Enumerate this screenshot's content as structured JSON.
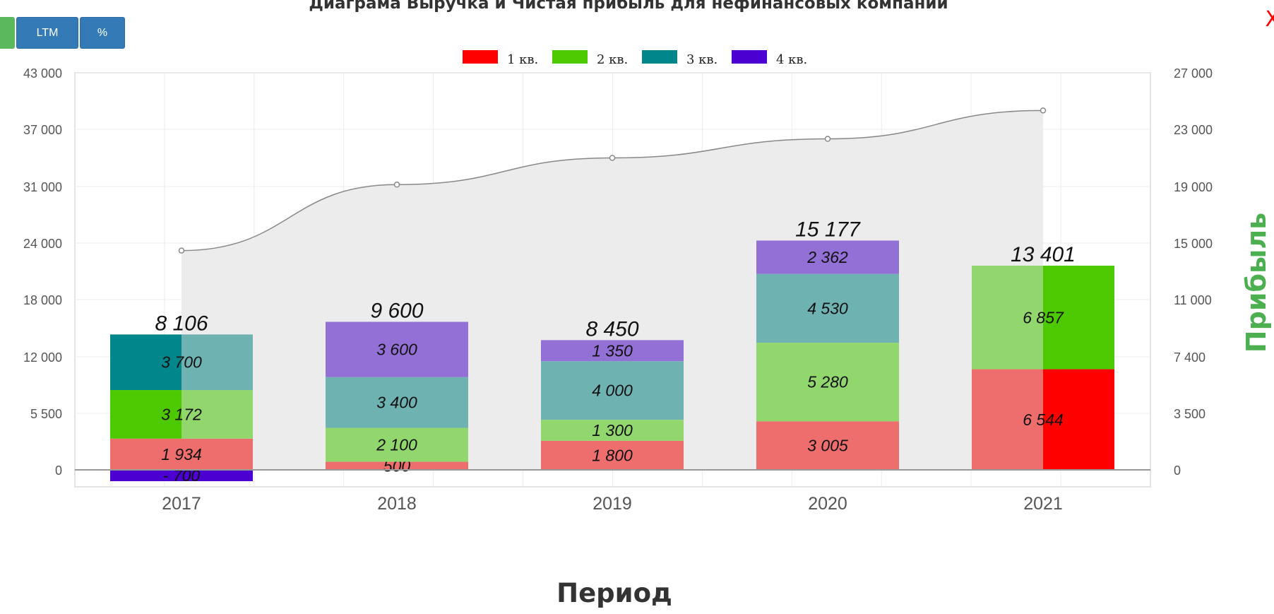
{
  "title": "Диаграма Выручка и Чистая прибыль для нефинансовых компаний",
  "buttons": {
    "ltm": "LTM",
    "percent": "%"
  },
  "close_label": "X",
  "chart_data": {
    "type": "bar",
    "stacked": true,
    "categories": [
      "2017",
      "2018",
      "2019",
      "2020",
      "2021"
    ],
    "series": [
      {
        "name": "1 кв.",
        "values": [
          1934,
          500,
          1800,
          3005,
          6544
        ]
      },
      {
        "name": "2 кв.",
        "values": [
          3172,
          2100,
          1300,
          5280,
          6857
        ]
      },
      {
        "name": "3 кв.",
        "values": [
          3700,
          3400,
          4000,
          4530,
          null
        ]
      },
      {
        "name": "4 кв.",
        "values": [
          -700,
          3600,
          1350,
          2362,
          null
        ]
      }
    ],
    "series_labels": [
      [
        "1 934",
        "500",
        "1 800",
        "3 005",
        "6 544"
      ],
      [
        "3 172",
        "2 100",
        "1 300",
        "5 280",
        "6 857"
      ],
      [
        "3 700",
        "3 400",
        "4 000",
        "4 530",
        ""
      ],
      [
        "- 700",
        "3 600",
        "1 350",
        "2 362",
        ""
      ]
    ],
    "totals": [
      "8 106",
      "9 600",
      "8 450",
      "15 177",
      "13 401"
    ],
    "colors": [
      "#ff0000",
      "#4cc900",
      "#00868b",
      "#4b00d1"
    ],
    "light_colors": [
      "#ee6e6e",
      "#92d66e",
      "#6fb2b2",
      "#9270d6"
    ],
    "area": {
      "values": [
        23200,
        31200,
        34000,
        36000,
        39000
      ],
      "color": "#ececec",
      "line_color": "#888888"
    },
    "left_axis": {
      "ticks": [
        "43 000",
        "37 000",
        "31 000",
        "24 000",
        "18 000",
        "12 000",
        "5 500",
        "0"
      ]
    },
    "right_axis": {
      "label": "Прибыль",
      "label_color": "#4caf50",
      "ticks": [
        "27 000",
        "23 000",
        "19 000",
        "15 000",
        "11 000",
        "7 400",
        "3 500",
        "0"
      ]
    },
    "xlabel": "Период",
    "legend_position": "top-center",
    "grid": true
  }
}
